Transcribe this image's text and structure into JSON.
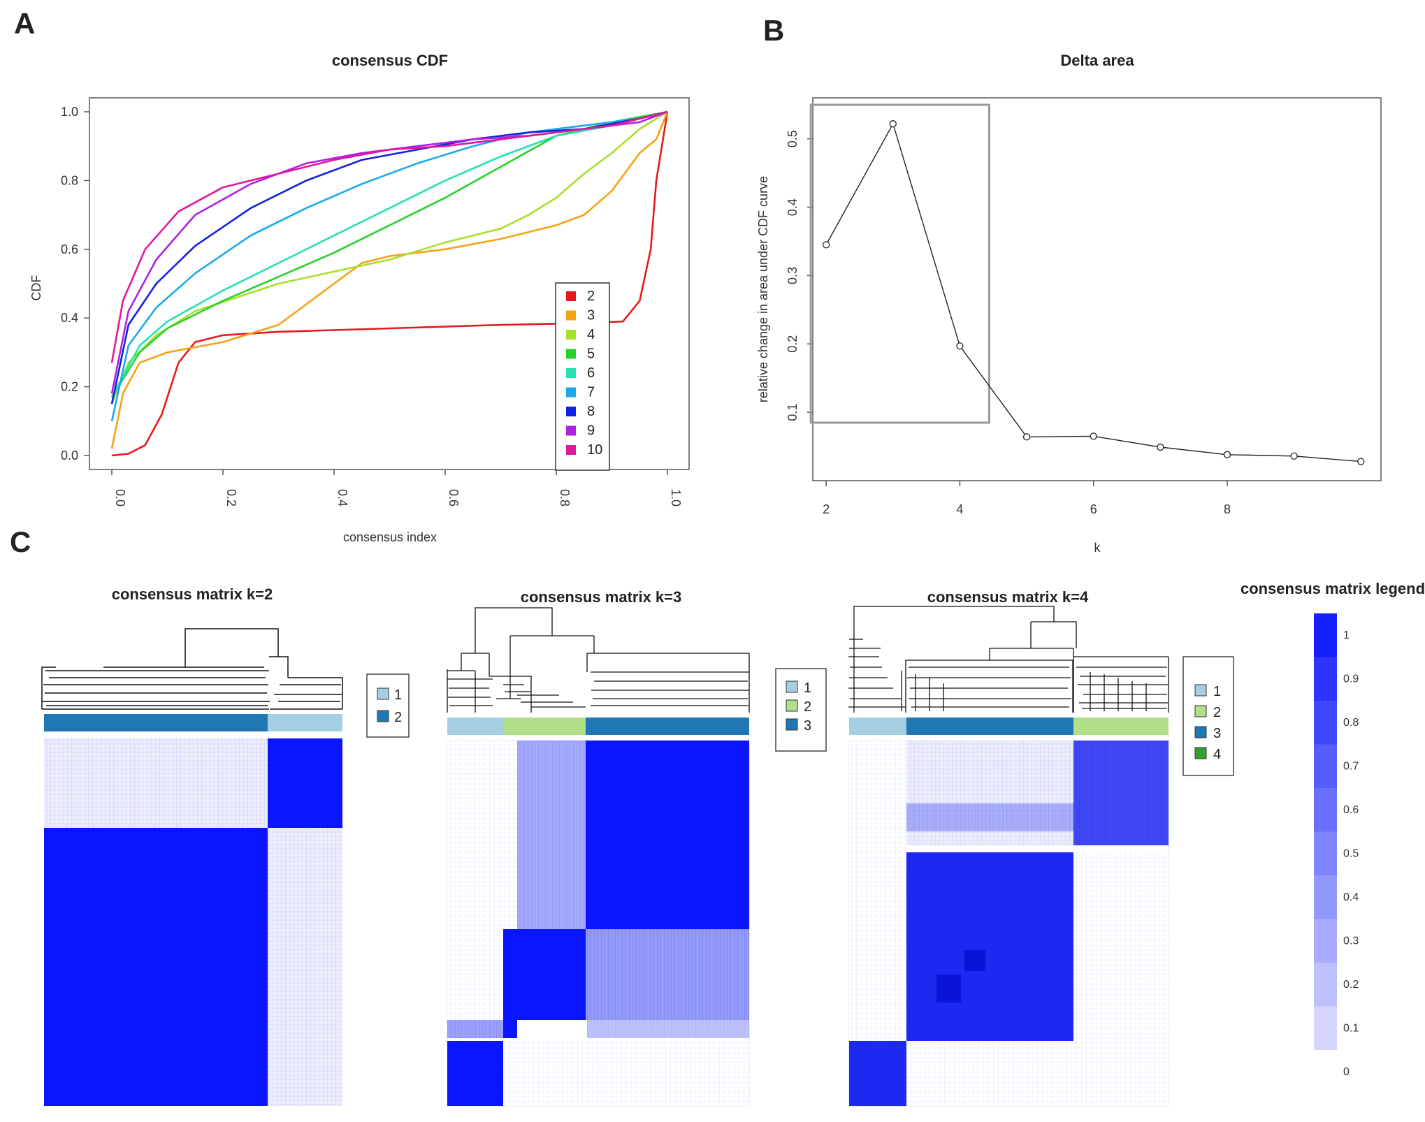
{
  "panels": {
    "a": "A",
    "b": "B",
    "c": "C"
  },
  "colors": {
    "matrix_blue": "#0a14ff",
    "clust1": "#a6cee3",
    "clust2_k2": "#1f78b4",
    "clust2": "#b2df8a",
    "clust3": "#1f78b4",
    "clust4": "#33a02c"
  },
  "chart_data": [
    {
      "type": "line",
      "title": "consensus CDF",
      "xlabel": "consensus index",
      "ylabel": "CDF",
      "xlim": [
        0,
        1
      ],
      "ylim": [
        0,
        1
      ],
      "xticks": [
        "0.0",
        "0.2",
        "0.4",
        "0.6",
        "0.8",
        "1.0"
      ],
      "yticks": [
        "0.0",
        "0.2",
        "0.4",
        "0.6",
        "0.8",
        "1.0"
      ],
      "legend": "right",
      "series": [
        {
          "name": "2",
          "color": "#e41a1c",
          "x": [
            0,
            0.03,
            0.06,
            0.09,
            0.12,
            0.15,
            0.2,
            0.3,
            0.5,
            0.7,
            0.85,
            0.92,
            0.95,
            0.97,
            0.98,
            1.0
          ],
          "y": [
            0.0,
            0.005,
            0.03,
            0.12,
            0.27,
            0.33,
            0.35,
            0.36,
            0.37,
            0.38,
            0.385,
            0.39,
            0.45,
            0.6,
            0.8,
            1.0
          ]
        },
        {
          "name": "3",
          "color": "#f5a214",
          "x": [
            0,
            0.02,
            0.05,
            0.1,
            0.2,
            0.3,
            0.4,
            0.45,
            0.5,
            0.6,
            0.7,
            0.8,
            0.85,
            0.9,
            0.95,
            0.98,
            1.0
          ],
          "y": [
            0.02,
            0.18,
            0.27,
            0.3,
            0.33,
            0.38,
            0.5,
            0.56,
            0.58,
            0.6,
            0.63,
            0.67,
            0.7,
            0.77,
            0.88,
            0.92,
            1.0
          ]
        },
        {
          "name": "4",
          "color": "#a7e02a",
          "x": [
            0,
            0.03,
            0.08,
            0.15,
            0.3,
            0.5,
            0.6,
            0.7,
            0.75,
            0.8,
            0.85,
            0.9,
            0.95,
            1.0
          ],
          "y": [
            0.15,
            0.27,
            0.35,
            0.42,
            0.5,
            0.57,
            0.62,
            0.66,
            0.7,
            0.75,
            0.82,
            0.88,
            0.95,
            1.0
          ]
        },
        {
          "name": "5",
          "color": "#26d22a",
          "x": [
            0,
            0.05,
            0.1,
            0.2,
            0.3,
            0.4,
            0.5,
            0.6,
            0.7,
            0.8,
            0.9,
            1.0
          ],
          "y": [
            0.17,
            0.3,
            0.37,
            0.45,
            0.52,
            0.59,
            0.67,
            0.75,
            0.84,
            0.93,
            0.97,
            1.0
          ]
        },
        {
          "name": "6",
          "color": "#26e0b3",
          "x": [
            0,
            0.05,
            0.1,
            0.2,
            0.3,
            0.4,
            0.5,
            0.6,
            0.7,
            0.8,
            0.9,
            1.0
          ],
          "y": [
            0.17,
            0.32,
            0.39,
            0.48,
            0.56,
            0.64,
            0.72,
            0.8,
            0.87,
            0.93,
            0.96,
            1.0
          ]
        },
        {
          "name": "7",
          "color": "#1ba9e8",
          "x": [
            0,
            0.03,
            0.08,
            0.15,
            0.25,
            0.35,
            0.45,
            0.55,
            0.65,
            0.75,
            0.85,
            0.95,
            1.0
          ],
          "y": [
            0.1,
            0.32,
            0.43,
            0.53,
            0.64,
            0.72,
            0.79,
            0.85,
            0.9,
            0.94,
            0.96,
            0.98,
            1.0
          ]
        },
        {
          "name": "8",
          "color": "#1420e0",
          "x": [
            0,
            0.03,
            0.08,
            0.15,
            0.25,
            0.35,
            0.45,
            0.55,
            0.65,
            0.75,
            0.85,
            0.95,
            1.0
          ],
          "y": [
            0.15,
            0.38,
            0.5,
            0.61,
            0.72,
            0.8,
            0.86,
            0.89,
            0.92,
            0.94,
            0.95,
            0.98,
            1.0
          ]
        },
        {
          "name": "9",
          "color": "#b020e0",
          "x": [
            0,
            0.03,
            0.08,
            0.15,
            0.25,
            0.35,
            0.45,
            0.55,
            0.65,
            0.75,
            0.85,
            0.95,
            1.0
          ],
          "y": [
            0.18,
            0.42,
            0.57,
            0.7,
            0.79,
            0.85,
            0.88,
            0.9,
            0.92,
            0.93,
            0.95,
            0.97,
            1.0
          ]
        },
        {
          "name": "10",
          "color": "#e0189c",
          "x": [
            0,
            0.02,
            0.06,
            0.12,
            0.2,
            0.3,
            0.4,
            0.5,
            0.6,
            0.7,
            0.8,
            0.9,
            1.0
          ],
          "y": [
            0.27,
            0.45,
            0.6,
            0.71,
            0.78,
            0.82,
            0.86,
            0.89,
            0.9,
            0.92,
            0.94,
            0.96,
            1.0
          ]
        }
      ]
    },
    {
      "type": "line",
      "title": "Delta area",
      "xlabel": "k",
      "ylabel": "relative change in area under CDF curve",
      "xlim": [
        1.8,
        10.3
      ],
      "ylim": [
        0.0,
        0.56
      ],
      "xticks": [
        "2",
        "4",
        "6",
        "8"
      ],
      "yticks": [
        "0.1",
        "0.2",
        "0.3",
        "0.4",
        "0.5"
      ],
      "x": [
        2,
        3,
        4,
        5,
        6,
        7,
        8,
        9,
        10
      ],
      "y": [
        0.345,
        0.522,
        0.197,
        0.064,
        0.065,
        0.049,
        0.038,
        0.036,
        0.028
      ],
      "highlight_box": {
        "k_from": 2,
        "k_to": 4
      }
    },
    {
      "type": "heatmap",
      "title": "consensus matrix k=2",
      "legend_labels": [
        "1",
        "2"
      ],
      "clusters": [
        {
          "id": "2",
          "fraction": 0.75
        },
        {
          "id": "1",
          "fraction": 0.25
        }
      ]
    },
    {
      "type": "heatmap",
      "title": "consensus matrix k=3",
      "legend_labels": [
        "1",
        "2",
        "3"
      ],
      "clusters": [
        {
          "id": "1",
          "fraction": 0.18
        },
        {
          "id": "2",
          "fraction": 0.28
        },
        {
          "id": "3",
          "fraction": 0.54
        }
      ]
    },
    {
      "type": "heatmap",
      "title": "consensus matrix k=4",
      "legend_labels": [
        "1",
        "2",
        "3",
        "4"
      ],
      "clusters": [
        {
          "id": "1",
          "fraction": 0.18
        },
        {
          "id": "3",
          "fraction": 0.52
        },
        {
          "id": "2",
          "fraction": 0.3
        }
      ]
    },
    {
      "type": "colorbar",
      "title": "consensus matrix legend",
      "labels": [
        "1",
        "0.9",
        "0.8",
        "0.7",
        "0.6",
        "0.5",
        "0.4",
        "0.3",
        "0.2",
        "0.1",
        "0"
      ]
    }
  ]
}
